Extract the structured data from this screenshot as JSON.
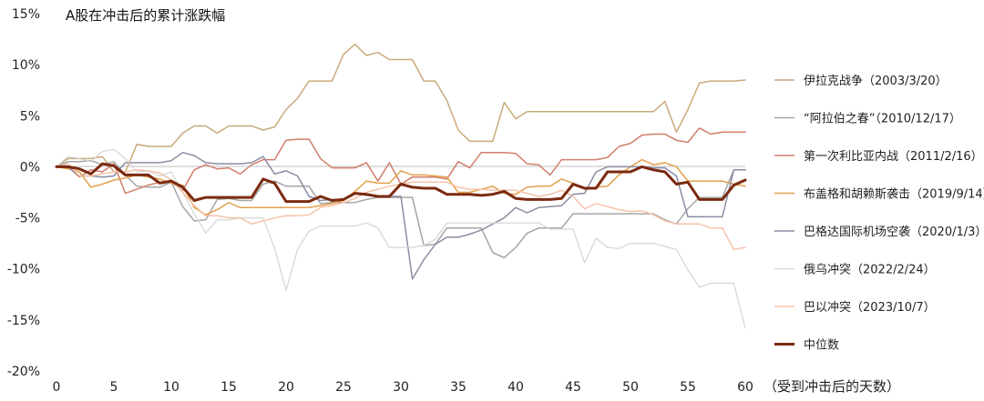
{
  "chart_data": {
    "type": "line",
    "title": "A股在冲击后的累计涨跌幅",
    "xlabel": "（受到冲击后的天数）",
    "ylabel": "",
    "xlim": [
      0,
      60
    ],
    "ylim": [
      -20,
      15
    ],
    "xticks": [
      0,
      5,
      10,
      15,
      20,
      25,
      30,
      35,
      40,
      45,
      50,
      55,
      60
    ],
    "yticks": [
      15,
      10,
      5,
      0,
      -5,
      -10,
      -15,
      -20
    ],
    "ytick_labels": [
      "15%",
      "10%",
      "5%",
      "0%",
      "-5%",
      "-10%",
      "-15%",
      "-20%"
    ],
    "grid": false,
    "legend_position": "right",
    "series": [
      {
        "name": "伊拉克战争（2003/3/20）",
        "color": "#c9aa7a",
        "width": 1.5,
        "values": [
          0,
          0.8,
          0.8,
          0.8,
          1,
          -0.5,
          -0.5,
          2.2,
          2,
          2,
          2,
          3.3,
          4,
          4,
          3.3,
          4,
          4,
          4,
          3.6,
          3.9,
          5.6,
          6.7,
          8.4,
          8.4,
          8.4,
          11,
          12,
          10.9,
          11.2,
          10.5,
          10.5,
          10.5,
          8.4,
          8.4,
          6.5,
          3.6,
          2.5,
          2.5,
          2.5,
          6.3,
          4.7,
          5.4,
          5.4,
          5.4,
          5.4,
          5.4,
          5.4,
          5.4,
          5.4,
          5.4,
          5.4,
          5.4,
          5.4,
          6.4,
          3.4,
          5.6,
          8.2,
          8.4,
          8.4,
          8.4,
          8.5
        ]
      },
      {
        "name": "“阿拉伯之春”（2010/12/17）",
        "color": "#a6a6a6",
        "width": 1.5,
        "values": [
          0,
          0.5,
          0.5,
          0.6,
          0.2,
          0.5,
          -0.8,
          -1.9,
          -2,
          -2,
          -1.5,
          -3.9,
          -5.3,
          -5.2,
          -3.2,
          -3.1,
          -3.3,
          -3.3,
          -1.7,
          -1.4,
          -1.9,
          -1.9,
          -1.9,
          -3.6,
          -3.5,
          -3.5,
          -3.5,
          -3.2,
          -3,
          -3,
          -3,
          -3,
          -7.7,
          -7.6,
          -6,
          -6,
          -6,
          -6,
          -8.4,
          -8.9,
          -7.9,
          -6.5,
          -6,
          -6,
          -6,
          -4.6,
          -4.6,
          -4.6,
          -4.6,
          -4.6,
          -4.6,
          -4.6,
          -4.6,
          -5.2,
          -5.6,
          -4.1,
          -3,
          -3,
          -3,
          -0.3,
          -0.3
        ]
      },
      {
        "name": "第一次利比亚内战（2011/2/16）",
        "color": "#d07e6a",
        "width": 1.5,
        "values": [
          0,
          0,
          -1,
          -0.3,
          -0.5,
          0.3,
          -2.6,
          -2.2,
          -1.8,
          -1.5,
          -1.5,
          -2.3,
          -0.3,
          0.2,
          -0.2,
          -0.1,
          -0.7,
          0.2,
          0.7,
          0.7,
          2.6,
          2.7,
          2.7,
          0.8,
          -0.1,
          -0.1,
          -0.1,
          0.4,
          -1.4,
          0.4,
          -1.7,
          -1,
          -1,
          -1,
          -1.2,
          0.5,
          -0.1,
          1.4,
          1.4,
          1.4,
          1.3,
          0.3,
          0.2,
          -0.8,
          0.7,
          0.7,
          0.7,
          0.7,
          0.9,
          2,
          2.3,
          3.1,
          3.2,
          3.2,
          2.6,
          2.4,
          3.8,
          3.2,
          3.4,
          3.4,
          3.4
        ]
      },
      {
        "name": "布盖格和胡赖斯袭击（2019/9/14）",
        "color": "#e3a04c",
        "width": 1.5,
        "values": [
          0,
          -0.2,
          -0.5,
          -2,
          -1.7,
          -1.3,
          -1.1,
          -0.8,
          -1,
          -1.2,
          -1.6,
          -1.8,
          -4,
          -4.7,
          -4.2,
          -3.5,
          -4,
          -4,
          -4,
          -4,
          -4,
          -4,
          -4,
          -3.8,
          -3.6,
          -3.3,
          -2.4,
          -1.4,
          -1.6,
          -1.6,
          -0.4,
          -0.8,
          -0.8,
          -0.9,
          -1,
          -2.5,
          -2.5,
          -2.2,
          -1.9,
          -2.6,
          -2.7,
          -2,
          -1.9,
          -1.9,
          -1.2,
          -1.6,
          -2.2,
          -2,
          -1.9,
          -0.8,
          0,
          0.7,
          0.2,
          0.4,
          0,
          -1.4,
          -1.4,
          -1.4,
          -1.4,
          -1.7,
          -1.9
        ]
      },
      {
        "name": "巴格达国际机场空袭（2020/1/3）",
        "color": "#8c8ca3",
        "width": 1.5,
        "values": [
          0,
          0,
          -0.9,
          -0.9,
          -1,
          -0.9,
          0.4,
          0.4,
          0.4,
          0.4,
          0.6,
          1.4,
          1.1,
          0.4,
          0.3,
          0.3,
          0.3,
          0.4,
          1,
          -0.7,
          -0.4,
          -0.9,
          -2.9,
          -3.3,
          -3.2,
          -3.2,
          -2.6,
          -2.8,
          -2.9,
          -2.9,
          -2.9,
          -11,
          -9.1,
          -7.6,
          -6.9,
          -6.9,
          -6.6,
          -6.2,
          -5.6,
          -5,
          -4,
          -4.5,
          -4,
          -3.9,
          -3.8,
          -2.7,
          -2.6,
          -0.5,
          0,
          0,
          0,
          0,
          -0.1,
          -0.1,
          -0.9,
          -4.9,
          -4.9,
          -4.9,
          -4.9,
          -0.3,
          -0.3
        ]
      },
      {
        "name": "俄乌冲突（2022/2/24）",
        "color": "#d4d4d4",
        "width": 1.2,
        "values": [
          0,
          1,
          0.8,
          0.5,
          1.5,
          1.7,
          0.8,
          -0.5,
          -0.4,
          -0.9,
          -0.5,
          -2.5,
          -4.6,
          -6.5,
          -5.2,
          -5.2,
          -5,
          -5,
          -5,
          -8,
          -12.1,
          -8.1,
          -6.3,
          -5.8,
          -5.8,
          -5.8,
          -5.8,
          -5.5,
          -6,
          -7.9,
          -7.9,
          -7.9,
          -7.7,
          -7.1,
          -5.5,
          -5.5,
          -5.5,
          -5.5,
          -5.5,
          -5.5,
          -5.5,
          -5.5,
          -5.5,
          -6.1,
          -6.1,
          -6.1,
          -9.4,
          -7,
          -7.9,
          -8,
          -7.5,
          -7.5,
          -7.5,
          -7.8,
          -8.1,
          -10.1,
          -11.8,
          -11.4,
          -11.4,
          -11.4,
          -15.8
        ]
      },
      {
        "name": "巴以冲突（2023/10/7）",
        "color": "#f5c3aa",
        "width": 1.5,
        "values": [
          0,
          0.3,
          -0.9,
          -0.9,
          -0.7,
          -0.5,
          -0.5,
          -0.3,
          -0.4,
          -0.6,
          -1.3,
          -2.5,
          -3.8,
          -4.8,
          -4.8,
          -5,
          -5,
          -5.6,
          -5.3,
          -5,
          -4.8,
          -4.8,
          -4.7,
          -4,
          -3.8,
          -3.5,
          -3.1,
          -2.5,
          -2.2,
          -1.9,
          -1.7,
          -1.5,
          -1.5,
          -1.5,
          -1.5,
          -2,
          -2.2,
          -2.2,
          -2.3,
          -2.3,
          -2.3,
          -2.6,
          -2.9,
          -2.7,
          -2.3,
          -2.9,
          -4.1,
          -3.6,
          -3.9,
          -4.2,
          -4.4,
          -4.3,
          -4.7,
          -5.3,
          -5.6,
          -5.6,
          -5.6,
          -6,
          -6,
          -8.1,
          -7.9
        ]
      },
      {
        "name": "中位数",
        "color": "#7a2a10",
        "width": 3,
        "values": [
          0,
          0,
          -0.2,
          -0.7,
          0.3,
          0.1,
          -0.8,
          -0.8,
          -0.8,
          -1.6,
          -1.4,
          -2,
          -3.3,
          -3,
          -3,
          -3,
          -3,
          -3,
          -1.2,
          -1.6,
          -3.4,
          -3.4,
          -3.4,
          -2.9,
          -3.3,
          -3.2,
          -2.6,
          -2.7,
          -2.9,
          -2.9,
          -1.7,
          -2,
          -2.1,
          -2.1,
          -2.7,
          -2.7,
          -2.7,
          -2.8,
          -2.7,
          -2.4,
          -3.1,
          -3.2,
          -3.2,
          -3.2,
          -3.1,
          -1.7,
          -2.1,
          -2.1,
          -0.5,
          -0.5,
          -0.5,
          0,
          -0.3,
          -0.5,
          -1.7,
          -1.5,
          -3.2,
          -3.2,
          -3.2,
          -1.8,
          -1.3
        ]
      }
    ]
  }
}
